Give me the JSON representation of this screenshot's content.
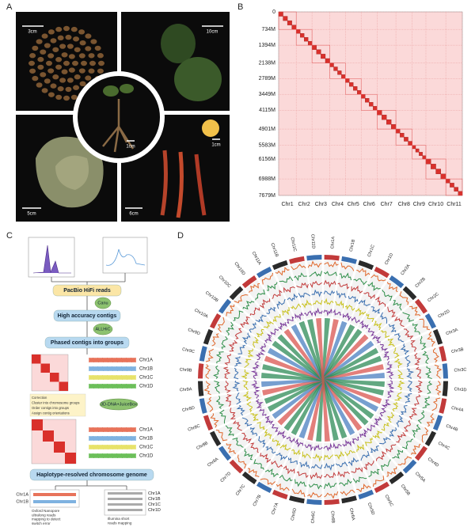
{
  "panels": {
    "a": {
      "label": "A",
      "scale_bars": [
        "3cm",
        "10cm",
        "1cm",
        "1cm",
        "5cm",
        "6cm"
      ]
    },
    "b": {
      "label": "B",
      "yticks": [
        0,
        {
          "value": 734,
          "label": "734M"
        },
        {
          "value": 1394,
          "label": "1394M"
        },
        {
          "value": 2138,
          "label": "2138M"
        },
        {
          "value": 2789,
          "label": "2789M"
        },
        {
          "value": 3449,
          "label": "3449M"
        },
        {
          "value": 4115,
          "label": "4115M"
        },
        {
          "value": 4901,
          "label": "4901M"
        },
        {
          "value": 5583,
          "label": "5583M"
        },
        {
          "value": 6156,
          "label": "6156M"
        },
        {
          "value": 6988,
          "label": "6988M"
        },
        {
          "value": 7679,
          "label": "7679M"
        }
      ],
      "chromosomes": [
        "Chr1",
        "Chr2",
        "Chr3",
        "Chr4",
        "Chr5",
        "Chr6",
        "Chr7",
        "Chr8",
        "Chr9",
        "Chr10",
        "Chr11"
      ]
    },
    "c": {
      "label": "C",
      "steps": [
        "PacBio HiFi reads",
        "High accuracy contigs",
        "Phased contigs into groups",
        "Haplotype-resolved chromosome genome"
      ],
      "tools": [
        "Canu",
        "ALLHiC",
        "3D-DNA+JuiceBox"
      ],
      "hap_labels": [
        "Chr1A",
        "Chr1B",
        "Chr1C",
        "Chr1D"
      ],
      "notes": [
        "Correction",
        "Cluster into chromosome groups",
        "Order contigs into groups",
        "Assign contig orientations"
      ],
      "ont_label": [
        "Oxford Nanopore",
        "ultralong reads",
        "mapping to detect",
        "switch error"
      ],
      "illumina_label": [
        "Illumina short",
        "reads mapping"
      ]
    },
    "d": {
      "label": "D",
      "chromosomes": [
        "Chr1A",
        "Chr1B",
        "Chr1C",
        "Chr1D",
        "Chr2A",
        "Chr2B",
        "Chr2C",
        "Chr2D",
        "Chr3A",
        "Chr3B",
        "Chr3C",
        "Chr3D",
        "Chr4A",
        "Chr4B",
        "Chr4C",
        "Chr4D",
        "Chr5A",
        "Chr5B",
        "Chr5C",
        "Chr5D",
        "Chr6A",
        "Chr6B",
        "Chr6C",
        "Chr6D",
        "Chr7A",
        "Chr7B",
        "Chr7C",
        "Chr7D",
        "Chr8A",
        "Chr8B",
        "Chr8C",
        "Chr8D",
        "Chr9A",
        "Chr9B",
        "Chr9C",
        "Chr9D",
        "Chr10A",
        "Chr10B",
        "Chr10C",
        "Chr10D",
        "Chr11A",
        "Chr11B",
        "Chr11C",
        "Chr11D"
      ]
    }
  }
}
